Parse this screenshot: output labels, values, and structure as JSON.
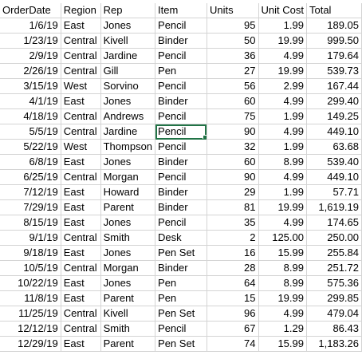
{
  "sheet": {
    "headers": [
      "OrderDate",
      "Region",
      "Rep",
      "Item",
      "Units",
      "Unit Cost",
      "Total"
    ],
    "rows": [
      [
        "1/6/19",
        "East",
        "Jones",
        "Pencil",
        "95",
        "1.99",
        "189.05"
      ],
      [
        "1/23/19",
        "Central",
        "Kivell",
        "Binder",
        "50",
        "19.99",
        "999.50"
      ],
      [
        "2/9/19",
        "Central",
        "Jardine",
        "Pencil",
        "36",
        "4.99",
        "179.64"
      ],
      [
        "2/26/19",
        "Central",
        "Gill",
        "Pen",
        "27",
        "19.99",
        "539.73"
      ],
      [
        "3/15/19",
        "West",
        "Sorvino",
        "Pencil",
        "56",
        "2.99",
        "167.44"
      ],
      [
        "4/1/19",
        "East",
        "Jones",
        "Binder",
        "60",
        "4.99",
        "299.40"
      ],
      [
        "4/18/19",
        "Central",
        "Andrews",
        "Pencil",
        "75",
        "1.99",
        "149.25"
      ],
      [
        "5/5/19",
        "Central",
        "Jardine",
        "Pencil",
        "90",
        "4.99",
        "449.10"
      ],
      [
        "5/22/19",
        "West",
        "Thompson",
        "Pencil",
        "32",
        "1.99",
        "63.68"
      ],
      [
        "6/8/19",
        "East",
        "Jones",
        "Binder",
        "60",
        "8.99",
        "539.40"
      ],
      [
        "6/25/19",
        "Central",
        "Morgan",
        "Pencil",
        "90",
        "4.99",
        "449.10"
      ],
      [
        "7/12/19",
        "East",
        "Howard",
        "Binder",
        "29",
        "1.99",
        "57.71"
      ],
      [
        "7/29/19",
        "East",
        "Parent",
        "Binder",
        "81",
        "19.99",
        "1,619.19"
      ],
      [
        "8/15/19",
        "East",
        "Jones",
        "Pencil",
        "35",
        "4.99",
        "174.65"
      ],
      [
        "9/1/19",
        "Central",
        "Smith",
        "Desk",
        "2",
        "125.00",
        "250.00"
      ],
      [
        "9/18/19",
        "East",
        "Jones",
        "Pen Set",
        "16",
        "15.99",
        "255.84"
      ],
      [
        "10/5/19",
        "Central",
        "Morgan",
        "Binder",
        "28",
        "8.99",
        "251.72"
      ],
      [
        "10/22/19",
        "East",
        "Jones",
        "Pen",
        "64",
        "8.99",
        "575.36"
      ],
      [
        "11/8/19",
        "East",
        "Parent",
        "Pen",
        "15",
        "19.99",
        "299.85"
      ],
      [
        "11/25/19",
        "Central",
        "Kivell",
        "Pen Set",
        "96",
        "4.99",
        "479.04"
      ],
      [
        "12/12/19",
        "Central",
        "Smith",
        "Pencil",
        "67",
        "1.29",
        "86.43"
      ],
      [
        "12/29/19",
        "East",
        "Parent",
        "Pen Set",
        "74",
        "15.99",
        "1,183.26"
      ]
    ],
    "selected_cell": {
      "row": 7,
      "col": 3
    },
    "accent_color": "#217346",
    "gridline_color": "#d4d4d4"
  }
}
